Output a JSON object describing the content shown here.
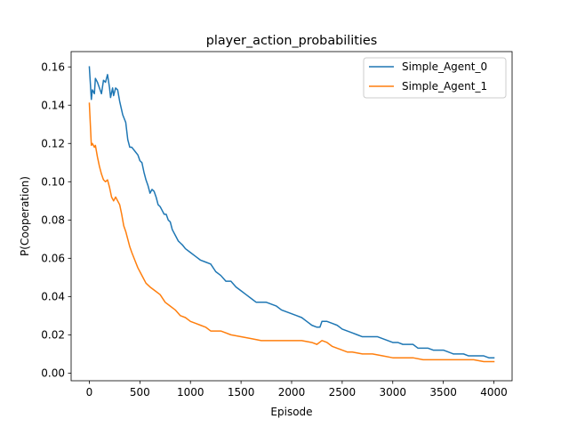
{
  "chart_data": {
    "type": "line",
    "title": "player_action_probabilities",
    "xlabel": "Episode",
    "ylabel": "P(Cooperation)",
    "xlim": [
      -180,
      4180
    ],
    "ylim": [
      -0.004,
      0.168
    ],
    "xticks": [
      0,
      500,
      1000,
      1500,
      2000,
      2500,
      3000,
      3500,
      4000
    ],
    "yticks": [
      0.0,
      0.02,
      0.04,
      0.06,
      0.08,
      0.1,
      0.12,
      0.14,
      0.16
    ],
    "ytick_labels": [
      "0.00",
      "0.02",
      "0.04",
      "0.06",
      "0.08",
      "0.10",
      "0.12",
      "0.14",
      "0.16"
    ],
    "grid": false,
    "legend_position": "top-right",
    "series": [
      {
        "name": "Simple_Agent_0",
        "color": "#1f77b4",
        "x": [
          0,
          20,
          30,
          50,
          60,
          80,
          100,
          120,
          140,
          160,
          180,
          200,
          210,
          230,
          240,
          260,
          280,
          300,
          330,
          360,
          380,
          400,
          420,
          450,
          480,
          500,
          520,
          540,
          560,
          580,
          600,
          620,
          640,
          660,
          680,
          700,
          720,
          740,
          760,
          780,
          800,
          820,
          850,
          880,
          900,
          920,
          950,
          1000,
          1050,
          1100,
          1150,
          1200,
          1250,
          1300,
          1350,
          1400,
          1450,
          1500,
          1550,
          1600,
          1650,
          1700,
          1750,
          1800,
          1850,
          1900,
          1950,
          2000,
          2050,
          2100,
          2150,
          2200,
          2250,
          2280,
          2300,
          2350,
          2400,
          2450,
          2500,
          2550,
          2600,
          2650,
          2700,
          2750,
          2800,
          2850,
          2900,
          2950,
          3000,
          3050,
          3100,
          3150,
          3200,
          3250,
          3300,
          3350,
          3400,
          3450,
          3500,
          3550,
          3600,
          3650,
          3700,
          3750,
          3800,
          3850,
          3900,
          3950,
          4000
        ],
        "values": [
          0.16,
          0.143,
          0.148,
          0.146,
          0.154,
          0.152,
          0.149,
          0.146,
          0.153,
          0.152,
          0.156,
          0.149,
          0.144,
          0.149,
          0.145,
          0.149,
          0.148,
          0.142,
          0.135,
          0.131,
          0.122,
          0.118,
          0.118,
          0.116,
          0.114,
          0.111,
          0.11,
          0.105,
          0.101,
          0.098,
          0.094,
          0.096,
          0.095,
          0.092,
          0.088,
          0.087,
          0.085,
          0.083,
          0.083,
          0.08,
          0.079,
          0.075,
          0.072,
          0.069,
          0.068,
          0.067,
          0.065,
          0.063,
          0.061,
          0.059,
          0.058,
          0.057,
          0.053,
          0.051,
          0.048,
          0.048,
          0.045,
          0.043,
          0.041,
          0.039,
          0.037,
          0.037,
          0.037,
          0.036,
          0.035,
          0.033,
          0.032,
          0.031,
          0.03,
          0.029,
          0.027,
          0.025,
          0.024,
          0.024,
          0.027,
          0.027,
          0.026,
          0.025,
          0.023,
          0.022,
          0.021,
          0.02,
          0.019,
          0.019,
          0.019,
          0.019,
          0.018,
          0.017,
          0.016,
          0.016,
          0.015,
          0.015,
          0.015,
          0.013,
          0.013,
          0.013,
          0.012,
          0.012,
          0.012,
          0.011,
          0.01,
          0.01,
          0.01,
          0.009,
          0.009,
          0.009,
          0.009,
          0.008,
          0.008
        ]
      },
      {
        "name": "Simple_Agent_1",
        "color": "#ff7f0e",
        "x": [
          0,
          20,
          30,
          50,
          60,
          80,
          100,
          120,
          140,
          160,
          180,
          200,
          220,
          240,
          260,
          280,
          300,
          320,
          340,
          360,
          380,
          400,
          420,
          450,
          480,
          500,
          530,
          560,
          600,
          650,
          700,
          750,
          800,
          850,
          900,
          950,
          1000,
          1050,
          1100,
          1150,
          1200,
          1300,
          1400,
          1500,
          1600,
          1700,
          1800,
          1900,
          2000,
          2100,
          2200,
          2250,
          2300,
          2350,
          2400,
          2450,
          2500,
          2550,
          2600,
          2700,
          2800,
          2900,
          3000,
          3100,
          3200,
          3300,
          3400,
          3500,
          3600,
          3700,
          3800,
          3900,
          4000
        ],
        "values": [
          0.141,
          0.119,
          0.12,
          0.118,
          0.119,
          0.113,
          0.108,
          0.104,
          0.101,
          0.1,
          0.101,
          0.097,
          0.092,
          0.09,
          0.092,
          0.09,
          0.088,
          0.083,
          0.077,
          0.074,
          0.07,
          0.066,
          0.063,
          0.059,
          0.055,
          0.053,
          0.05,
          0.047,
          0.045,
          0.043,
          0.041,
          0.037,
          0.035,
          0.033,
          0.03,
          0.029,
          0.027,
          0.026,
          0.025,
          0.024,
          0.022,
          0.022,
          0.02,
          0.019,
          0.018,
          0.017,
          0.017,
          0.017,
          0.017,
          0.017,
          0.016,
          0.015,
          0.017,
          0.016,
          0.014,
          0.013,
          0.012,
          0.011,
          0.011,
          0.01,
          0.01,
          0.009,
          0.008,
          0.008,
          0.008,
          0.007,
          0.007,
          0.007,
          0.007,
          0.007,
          0.007,
          0.006,
          0.006
        ]
      }
    ]
  }
}
